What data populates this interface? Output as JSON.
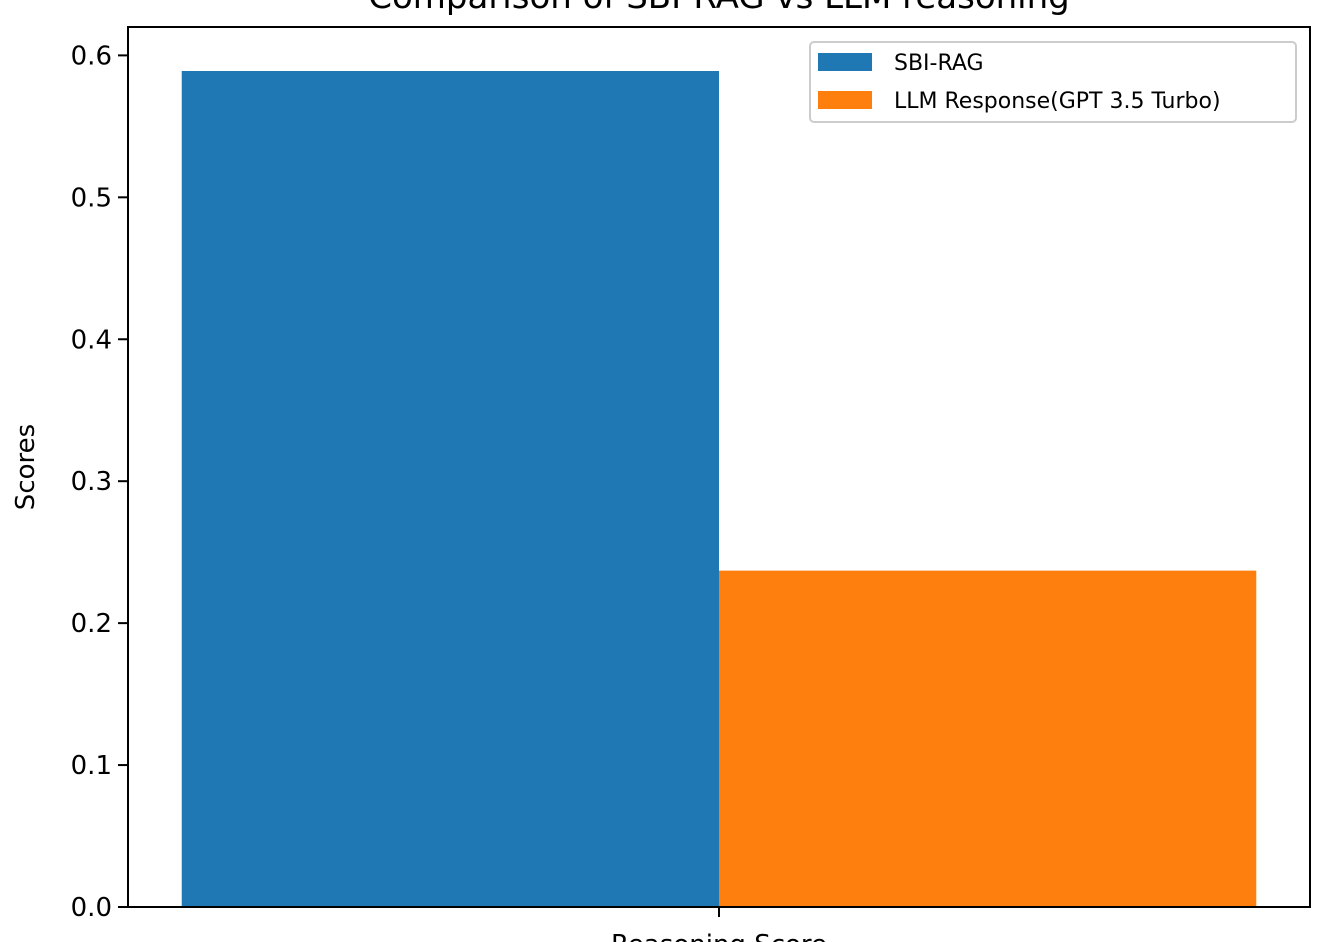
{
  "chart_data": {
    "type": "bar",
    "title": "Comparison of SBI-RAG vs LLM reasoning",
    "xlabel": "",
    "ylabel": "Scores",
    "categories": [
      "Reasoning Score"
    ],
    "ylim": [
      0,
      0.62
    ],
    "yticks": [
      0.0,
      0.1,
      0.2,
      0.3,
      0.4,
      0.5,
      0.6
    ],
    "ytick_labels": [
      "0.0",
      "0.1",
      "0.2",
      "0.3",
      "0.4",
      "0.5",
      "0.6"
    ],
    "grid": false,
    "legend_position": "top-right",
    "series": [
      {
        "name": "SBI-RAG",
        "color": "#1f77b4",
        "values": [
          0.589
        ]
      },
      {
        "name": "LLM Response(GPT 3.5 Turbo)",
        "color": "#ff7f0e",
        "values": [
          0.237
        ]
      }
    ]
  }
}
